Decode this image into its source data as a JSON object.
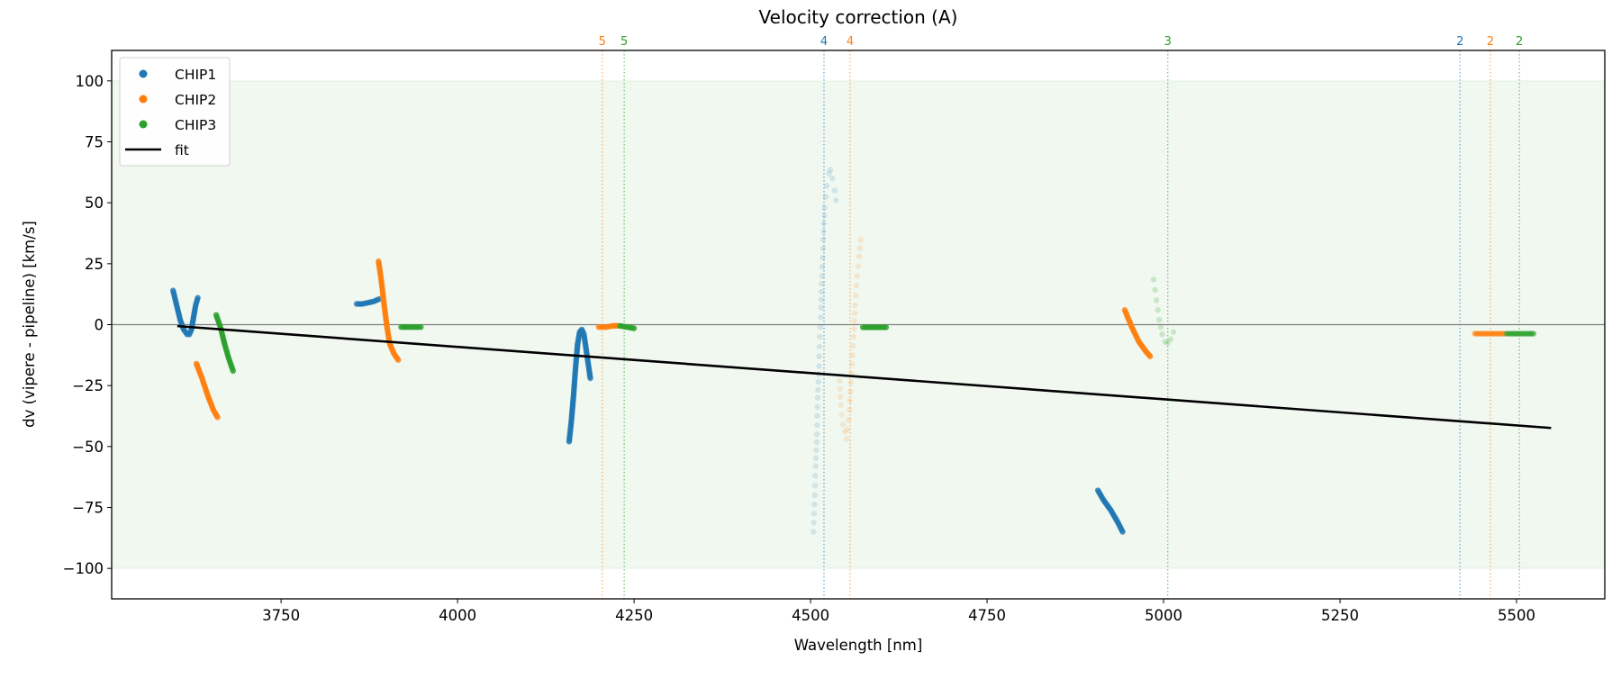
{
  "chart_data": {
    "type": "scatter",
    "title": "Velocity correction (A)",
    "xlabel": "Wavelength [nm]",
    "ylabel": "dv (vipere - pipeline) [km/s]",
    "xlim": [
      3510,
      5625
    ],
    "ylim": [
      -112.5,
      112.5
    ],
    "xticks": [
      3750,
      4000,
      4250,
      4500,
      4750,
      5000,
      5250,
      5500
    ],
    "yticks": [
      100,
      75,
      50,
      25,
      0,
      -25,
      -50,
      -75,
      -100
    ],
    "ytick_labels": [
      "100",
      "75",
      "50",
      "25",
      "0",
      "−25",
      "−50",
      "−75",
      "−100"
    ],
    "grid": false,
    "band": {
      "from": -100,
      "to": 100,
      "color": "#2ca02c"
    },
    "zero_line": 0,
    "legend": {
      "placement": "top-left",
      "entries": [
        {
          "label": "CHIP1",
          "kind": "marker",
          "color": "#1f77b4"
        },
        {
          "label": "CHIP2",
          "kind": "marker",
          "color": "#ff7f0e"
        },
        {
          "label": "CHIP3",
          "kind": "marker",
          "color": "#2ca02c"
        },
        {
          "label": "fit",
          "kind": "line",
          "color": "#000000"
        }
      ]
    },
    "fit": {
      "name": "fit",
      "color": "#000000",
      "points": [
        [
          3603,
          -0.6
        ],
        [
          5549,
          -42.4
        ]
      ]
    },
    "order_lines": [
      {
        "label": "5",
        "x": 4205,
        "color": "#ff7f0e"
      },
      {
        "label": "5",
        "x": 4236,
        "color": "#2ca02c"
      },
      {
        "label": "4",
        "x": 4519,
        "color": "#1f77b4"
      },
      {
        "label": "4",
        "x": 4556,
        "color": "#ff7f0e"
      },
      {
        "label": "3",
        "x": 5006,
        "color": "#2ca02c"
      },
      {
        "label": "2",
        "x": 5420,
        "color": "#1f77b4"
      },
      {
        "label": "2",
        "x": 5463,
        "color": "#ff7f0e"
      },
      {
        "label": "2",
        "x": 5504,
        "color": "#2ca02c"
      }
    ],
    "series": [
      {
        "name": "CHIP1",
        "color": "#1f77b4",
        "segments": [
          {
            "alpha": 0.8,
            "points": [
              [
                3597,
                14
              ],
              [
                3602,
                8
              ],
              [
                3607,
                2
              ],
              [
                3612,
                -2
              ],
              [
                3617,
                -4
              ],
              [
                3620,
                -4
              ],
              [
                3623,
                -2
              ],
              [
                3626,
                3
              ],
              [
                3629,
                8
              ],
              [
                3632,
                11
              ]
            ]
          },
          {
            "alpha": 0.8,
            "points": [
              [
                3857,
                8.5
              ],
              [
                3865,
                8.5
              ],
              [
                3873,
                9
              ],
              [
                3881,
                9.5
              ],
              [
                3889,
                10.5
              ]
            ]
          },
          {
            "alpha": 0.8,
            "points": [
              [
                4158,
                -48
              ],
              [
                4161,
                -40
              ],
              [
                4164,
                -30
              ],
              [
                4167,
                -18
              ],
              [
                4170,
                -8
              ],
              [
                4173,
                -3
              ],
              [
                4176,
                -2
              ],
              [
                4179,
                -4
              ],
              [
                4182,
                -10
              ],
              [
                4185,
                -16
              ],
              [
                4188,
                -22
              ]
            ]
          },
          {
            "alpha": 0.15,
            "points": [
              [
                4504,
                -85
              ],
              [
                4506,
                -70
              ],
              [
                4507,
                -58
              ],
              [
                4509,
                -45
              ],
              [
                4510,
                -30
              ],
              [
                4512,
                -17
              ],
              [
                4513,
                -5
              ],
              [
                4515,
                7
              ],
              [
                4516,
                20
              ],
              [
                4518,
                35
              ],
              [
                4520,
                48
              ],
              [
                4523,
                57
              ],
              [
                4526,
                62
              ],
              [
                4528,
                63.5
              ],
              [
                4531,
                60
              ],
              [
                4534,
                55
              ],
              [
                4536,
                51
              ]
            ]
          },
          {
            "alpha": 0.8,
            "points": [
              [
                4907,
                -68
              ],
              [
                4915,
                -72
              ],
              [
                4925,
                -76
              ],
              [
                4935,
                -81
              ],
              [
                4942,
                -85
              ]
            ]
          }
        ]
      },
      {
        "name": "CHIP2",
        "color": "#ff7f0e",
        "segments": [
          {
            "alpha": 0.8,
            "points": [
              [
                3630,
                -16
              ],
              [
                3638,
                -22
              ],
              [
                3646,
                -29
              ],
              [
                3654,
                -35
              ],
              [
                3660,
                -38
              ]
            ]
          },
          {
            "alpha": 0.8,
            "points": [
              [
                3888,
                26
              ],
              [
                3892,
                18
              ],
              [
                3896,
                8
              ],
              [
                3900,
                -1
              ],
              [
                3904,
                -8
              ],
              [
                3910,
                -12
              ],
              [
                3916,
                -14.5
              ]
            ]
          },
          {
            "alpha": 0.8,
            "points": [
              [
                4200,
                -1
              ],
              [
                4210,
                -1
              ],
              [
                4220,
                -0.5
              ],
              [
                4227,
                -0.5
              ]
            ]
          },
          {
            "alpha": 0.15,
            "points": [
              [
                4541,
                -23
              ],
              [
                4543,
                -33
              ],
              [
                4546,
                -41
              ],
              [
                4551,
                -47
              ],
              [
                4555,
                -35
              ],
              [
                4558,
                -20
              ],
              [
                4561,
                -5
              ],
              [
                4563,
                8
              ],
              [
                4566,
                20
              ],
              [
                4569,
                28
              ],
              [
                4571,
                34.7
              ]
            ]
          },
          {
            "alpha": 0.8,
            "points": [
              [
                4945,
                6
              ],
              [
                4955,
                -1
              ],
              [
                4965,
                -7
              ],
              [
                4975,
                -11
              ],
              [
                4981,
                -13
              ]
            ]
          },
          {
            "alpha": 0.6,
            "points": [
              [
                5441,
                -3.7
              ],
              [
                5483,
                -3.7
              ]
            ]
          }
        ]
      },
      {
        "name": "CHIP3",
        "color": "#2ca02c",
        "segments": [
          {
            "alpha": 0.8,
            "points": [
              [
                3658,
                4
              ],
              [
                3664,
                -1
              ],
              [
                3670,
                -8
              ],
              [
                3676,
                -14
              ],
              [
                3682,
                -19
              ]
            ]
          },
          {
            "alpha": 0.8,
            "points": [
              [
                3920,
                -1
              ],
              [
                3948,
                -1
              ]
            ]
          },
          {
            "alpha": 0.8,
            "points": [
              [
                4230,
                -0.5
              ],
              [
                4250,
                -1.5
              ]
            ]
          },
          {
            "alpha": 0.8,
            "points": [
              [
                4574,
                -1.1
              ],
              [
                4607,
                -1.1
              ]
            ]
          },
          {
            "alpha": 0.2,
            "points": [
              [
                4986,
                18.5
              ],
              [
                4990,
                10
              ],
              [
                4994,
                2
              ],
              [
                4998,
                -4
              ],
              [
                5002,
                -7
              ],
              [
                5006,
                -7.5
              ],
              [
                5010,
                -6
              ],
              [
                5014,
                -3
              ]
            ]
          },
          {
            "alpha": 0.6,
            "points": [
              [
                5486,
                -3.7
              ],
              [
                5524,
                -3.7
              ]
            ]
          }
        ]
      }
    ]
  }
}
